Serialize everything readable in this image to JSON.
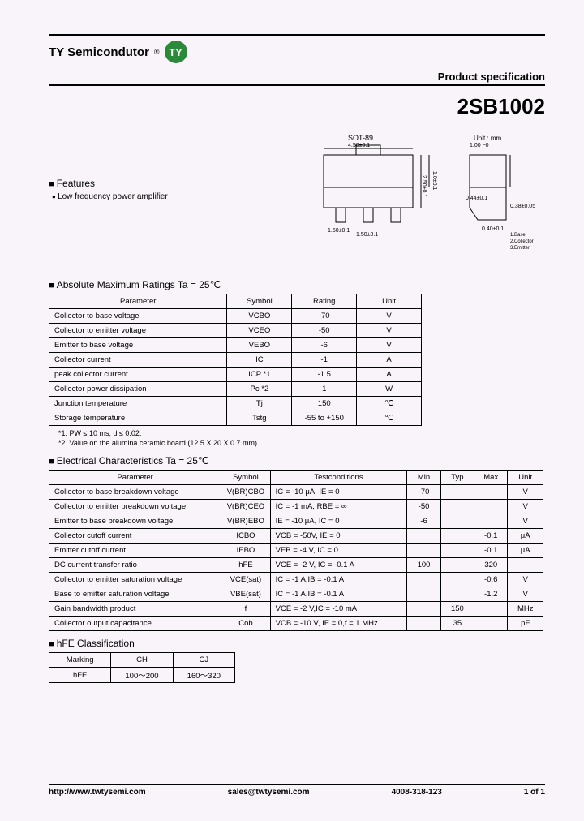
{
  "brand": {
    "name": "TY Semicondutor",
    "reg": "®",
    "logo_text": "TY",
    "logo_bg": "#2a8a3a"
  },
  "spec_label": "Product specification",
  "part_number": "2SB1002",
  "features": {
    "heading": "Features",
    "items": [
      "Low frequency power amplifier"
    ]
  },
  "package": {
    "label": "SOT-89",
    "pin_labels": "1.Base\n2.Collector\n3.Emitter",
    "dims": [
      "4.50±0.1",
      "1.50±0.1",
      "2.50±0.1",
      "1.0±0.1",
      "0.44±0.1",
      "0.38±0.05",
      "1.50±0.1",
      "0.40±0.1",
      "1.00 −0"
    ]
  },
  "amr": {
    "heading": "Absolute Maximum Ratings Ta = 25℃",
    "headers": [
      "Parameter",
      "Symbol",
      "Rating",
      "Unit"
    ],
    "rows": [
      [
        "Collector to base voltage",
        "VCBO",
        "-70",
        "V"
      ],
      [
        "Collector to emitter voltage",
        "VCEO",
        "-50",
        "V"
      ],
      [
        "Emitter to base voltage",
        "VEBO",
        "-6",
        "V"
      ],
      [
        "Collector current",
        "IC",
        "-1",
        "A"
      ],
      [
        "peak collector current",
        "ICP *1",
        "-1.5",
        "A"
      ],
      [
        "Collector power dissipation",
        "Pc *2",
        "1",
        "W"
      ],
      [
        "Junction temperature",
        "Tj",
        "150",
        "℃"
      ],
      [
        "Storage temperature",
        "Tstg",
        "-55 to +150",
        "℃"
      ]
    ],
    "notes": [
      "*1. PW ≤ 10 ms; d ≤ 0.02.",
      "*2. Value on the alumina ceramic board (12.5 X 20 X 0.7 mm)"
    ]
  },
  "ec": {
    "heading": "Electrical Characteristics Ta = 25℃",
    "headers": [
      "Parameter",
      "Symbol",
      "Testconditions",
      "Min",
      "Typ",
      "Max",
      "Unit"
    ],
    "rows": [
      [
        "Collector to base breakdown voltage",
        "V(BR)CBO",
        "IC = -10 μA, IE = 0",
        "-70",
        "",
        "",
        "V"
      ],
      [
        "Collector to emitter breakdown voltage",
        "V(BR)CEO",
        "IC = -1 mA, RBE = ∞",
        "-50",
        "",
        "",
        "V"
      ],
      [
        "Emitter to base breakdown voltage",
        "V(BR)EBO",
        "IE = -10 μA, IC = 0",
        "-6",
        "",
        "",
        "V"
      ],
      [
        "Collector cutoff current",
        "ICBO",
        "VCB = -50V, IE = 0",
        "",
        "",
        "-0.1",
        "μA"
      ],
      [
        "Emitter cutoff current",
        "IEBO",
        "VEB = -4 V, IC = 0",
        "",
        "",
        "-0.1",
        "μA"
      ],
      [
        "DC current transfer ratio",
        "hFE",
        "VCE = -2 V, IC = -0.1 A",
        "100",
        "",
        "320",
        ""
      ],
      [
        "Collector to emitter saturation voltage",
        "VCE(sat)",
        "IC = -1 A,IB = -0.1 A",
        "",
        "",
        "-0.6",
        "V"
      ],
      [
        "Base to emitter saturation voltage",
        "VBE(sat)",
        "IC = -1 A,IB = -0.1 A",
        "",
        "",
        "-1.2",
        "V"
      ],
      [
        "Gain bandwidth product",
        "f",
        "VCE = -2 V,IC = -10 mA",
        "",
        "150",
        "",
        "MHz"
      ],
      [
        "Collector output capacitance",
        "Cob",
        "VCB = -10 V, IE = 0,f = 1 MHz",
        "",
        "35",
        "",
        "pF"
      ]
    ]
  },
  "hfe": {
    "heading": "hFE Classification",
    "rows": [
      [
        "Marking",
        "CH",
        "CJ"
      ],
      [
        "hFE",
        "100～200",
        "160～320"
      ]
    ]
  },
  "footer": {
    "url": "http://www.twtysemi.com",
    "email": "sales@twtysemi.com",
    "phone": "4008-318-123",
    "page": "1 of 1"
  }
}
